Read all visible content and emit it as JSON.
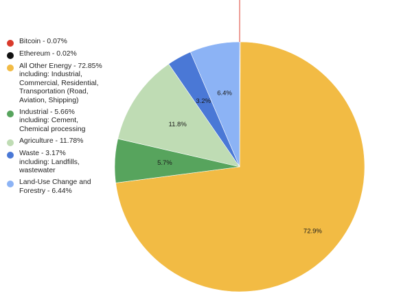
{
  "chart_data": {
    "type": "pie",
    "slices": [
      {
        "name": "Bitcoin",
        "legend": "Bitcoin - 0.07%",
        "value": 0.07,
        "label": "",
        "color": "#d93a2b"
      },
      {
        "name": "Ethereum",
        "legend": "Ethereum - 0.02%",
        "value": 0.02,
        "label": "",
        "color": "#111111"
      },
      {
        "name": "All Other Energy",
        "legend": "All Other Energy - 72.85%\nincluding: Industrial,\nCommercial, Residential,\nTransportation (Road,\nAviation, Shipping)",
        "value": 72.85,
        "label": "72.9%",
        "color": "#f2bb44"
      },
      {
        "name": "Industrial",
        "legend": "Industrial - 5.66%\nincluding: Cement,\nChemical processing",
        "value": 5.66,
        "label": "5.7%",
        "color": "#57a45d"
      },
      {
        "name": "Agriculture",
        "legend": "Agriculture - 11.78%",
        "value": 11.78,
        "label": "11.8%",
        "color": "#bfdcb4"
      },
      {
        "name": "Waste",
        "legend": "Waste - 3.17%\nincluding: Landfills,\nwastewater",
        "value": 3.17,
        "label": "3.2%",
        "color": "#4a78d6"
      },
      {
        "name": "Land-Use Change and Forestry",
        "legend": "Land-Use Change and\nForestry - 6.44%",
        "value": 6.44,
        "label": "6.4%",
        "color": "#8cb3f5"
      }
    ],
    "legend_position": "left",
    "start_angle": "12 o'clock, clockwise"
  }
}
